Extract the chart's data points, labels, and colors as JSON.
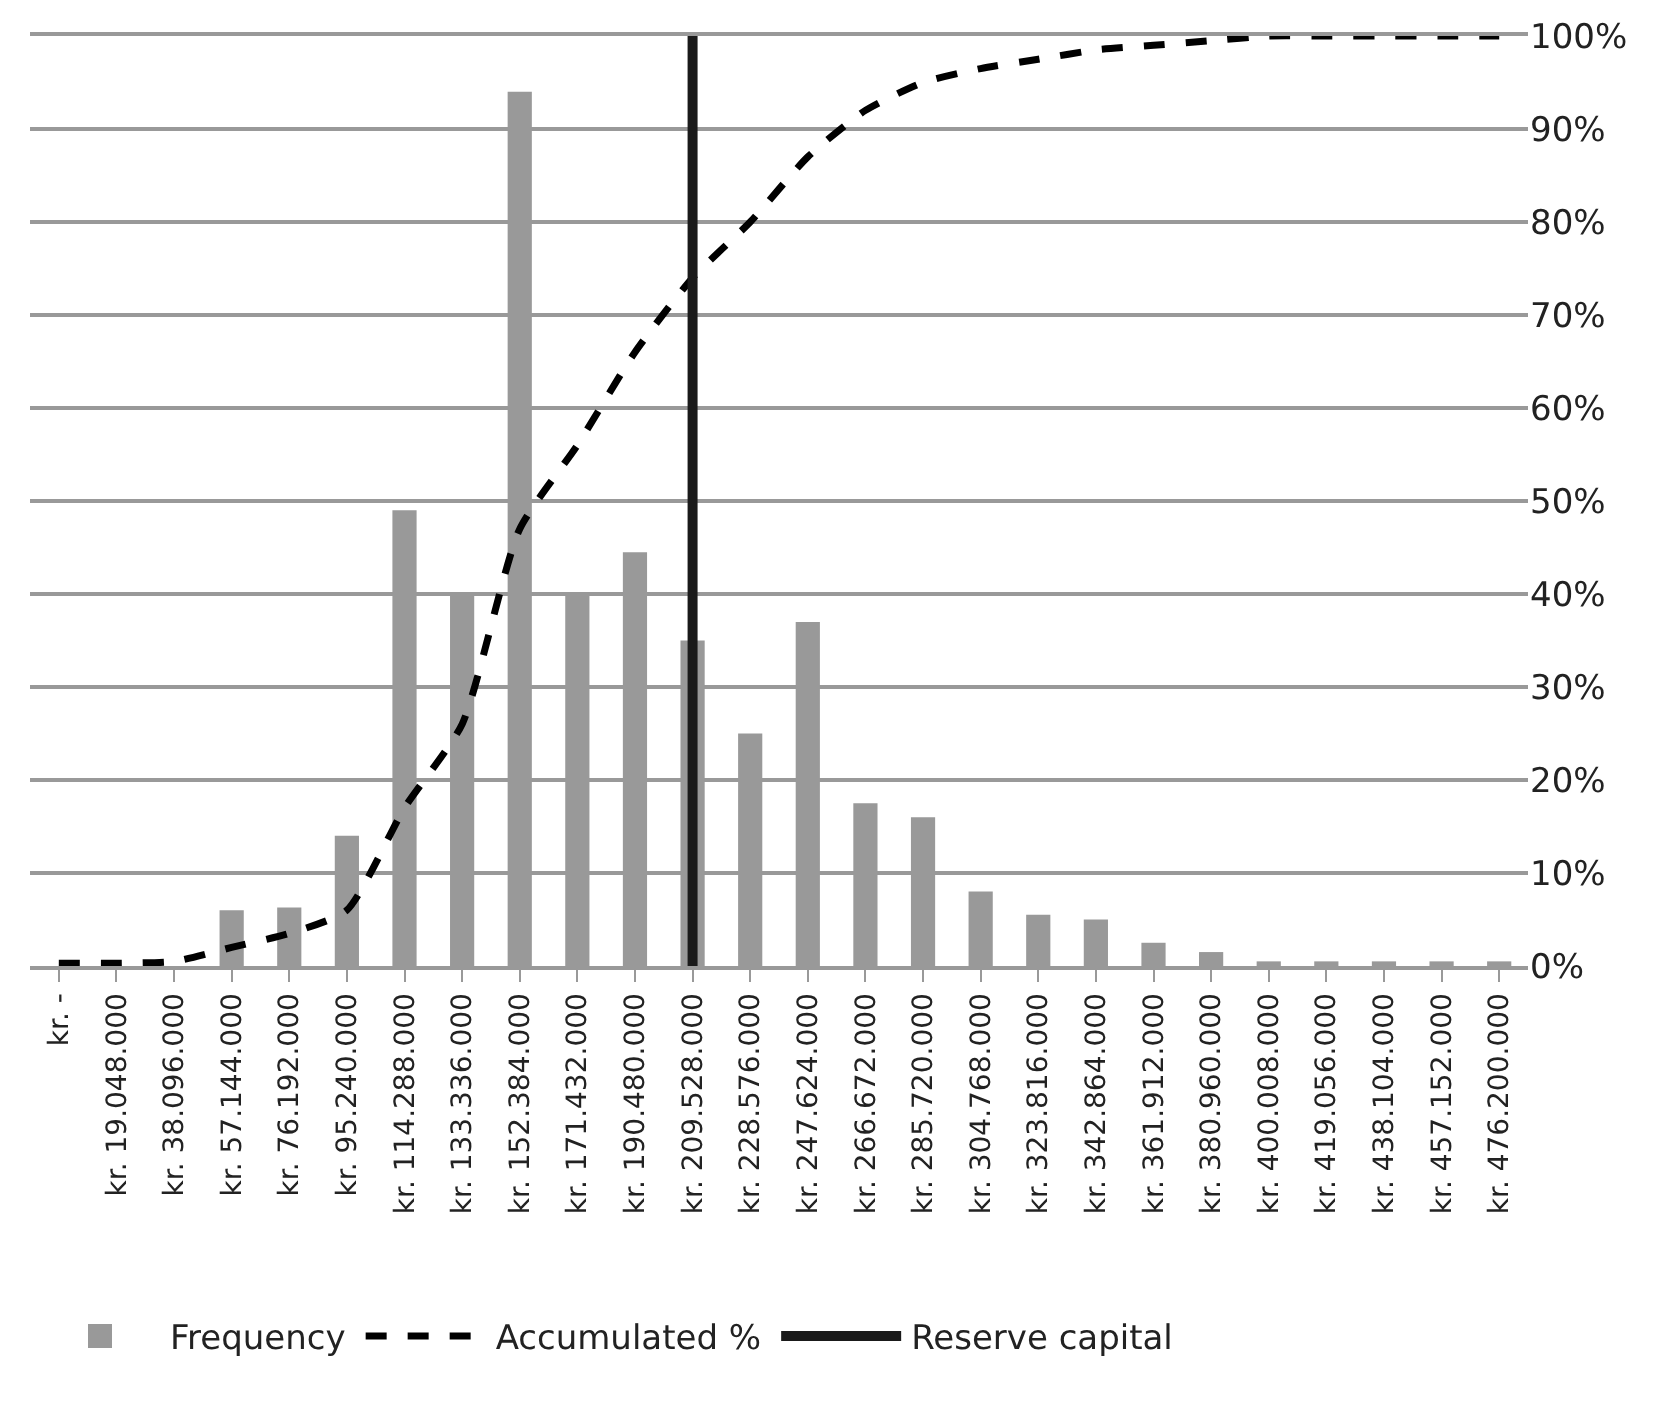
{
  "chart_data": {
    "type": "bar",
    "categories": [
      "kr. -",
      "kr. 19.048.000",
      "kr. 38.096.000",
      "kr. 57.144.000",
      "kr. 76.192.000",
      "kr. 95.240.000",
      "kr. 114.288.000",
      "kr. 133.336.000",
      "kr. 152.384.000",
      "kr. 171.432.000",
      "kr. 190.480.000",
      "kr. 209.528.000",
      "kr. 228.576.000",
      "kr. 247.624.000",
      "kr. 266.672.000",
      "kr. 285.720.000",
      "kr. 304.768.000",
      "kr. 323.816.000",
      "kr. 342.864.000",
      "kr. 361.912.000",
      "kr. 380.960.000",
      "kr. 400.008.000",
      "kr. 419.056.000",
      "kr. 438.104.000",
      "kr. 457.152.000",
      "kr. 476.200.000"
    ],
    "series": [
      {
        "name": "Frequency",
        "color": "#999999",
        "values": [
          0,
          0,
          0,
          6,
          6.3,
          14,
          49,
          40,
          94,
          40,
          44.5,
          35,
          25,
          37,
          17.5,
          16,
          8,
          5.5,
          5,
          2.5,
          1.5,
          0.5,
          0.5,
          0.5,
          0.5,
          0.5
        ]
      },
      {
        "name": "Accumulated %",
        "type": "line",
        "color": "#000000",
        "line_style": "dashed",
        "values": [
          0.3,
          0.3,
          0.5,
          2,
          3.5,
          6,
          17,
          26,
          47,
          56,
          66,
          74,
          80,
          87,
          92,
          95,
          96.5,
          97.5,
          98.5,
          99,
          99.5,
          100,
          100,
          100,
          100,
          100
        ]
      }
    ],
    "ref_lines": [
      {
        "axis": "x",
        "value": "kr. 209.528.000",
        "label": "Reserve capital",
        "color": "#1a1a1a"
      }
    ],
    "ylim": [
      0,
      100
    ],
    "yticks": [
      {
        "value": 0,
        "label": "0%"
      },
      {
        "value": 10,
        "label": "10%"
      },
      {
        "value": 20,
        "label": "20%"
      },
      {
        "value": 30,
        "label": "30%"
      },
      {
        "value": 40,
        "label": "40%"
      },
      {
        "value": 50,
        "label": "50%"
      },
      {
        "value": 60,
        "label": "60%"
      },
      {
        "value": 70,
        "label": "70%"
      },
      {
        "value": 80,
        "label": "80%"
      },
      {
        "value": 90,
        "label": "90%"
      },
      {
        "value": 100,
        "label": "100%"
      }
    ],
    "grid": "y",
    "legend": "bottom",
    "marker": "none"
  }
}
